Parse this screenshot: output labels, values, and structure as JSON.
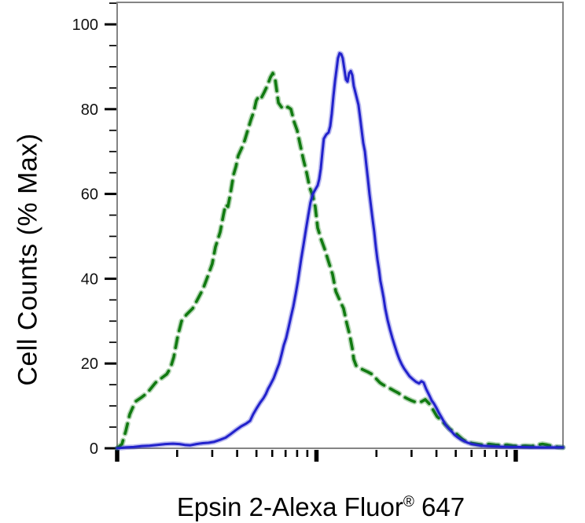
{
  "figure": {
    "background": "#ffffff",
    "frame_color": "#848484",
    "tick_color": "#000000",
    "label_color": "#000000"
  },
  "chart_data": {
    "type": "line",
    "subtype": "flow-cytometry-histogram-overlay",
    "title": "",
    "xlabel": "Epsin 2-Alexa Fluor® 647",
    "xlabel_main": "Epsin 2-Alexa Fluor",
    "xlabel_sup": "®",
    "xlabel_tail": " 647",
    "ylabel": "Cell Counts (% Max)",
    "x_scale": "log",
    "x_decades_shown": [
      0,
      2.237
    ],
    "x_major_tick_decades": [
      0,
      1,
      2
    ],
    "x_minor_ticks_per_decade": [
      2,
      3,
      4,
      5,
      6,
      7,
      8,
      9
    ],
    "x_tick_labels": [],
    "ylim": [
      0,
      105
    ],
    "y_major_ticks": [
      0,
      20,
      40,
      60,
      80,
      100
    ],
    "y_minor_tick_step": 5,
    "grid": "off",
    "legend": "none",
    "series": [
      {
        "name": "dashed_green_control",
        "style": "dashed",
        "color": "#117a11",
        "stroke_width": 3.6,
        "points_logx_pct": [
          [
            0.0,
            0
          ],
          [
            0.024,
            1
          ],
          [
            0.043,
            4
          ],
          [
            0.063,
            8
          ],
          [
            0.091,
            11
          ],
          [
            0.122,
            12
          ],
          [
            0.15,
            13
          ],
          [
            0.193,
            15.5
          ],
          [
            0.221,
            16.5
          ],
          [
            0.249,
            17.5
          ],
          [
            0.268,
            19
          ],
          [
            0.284,
            21.5
          ],
          [
            0.304,
            26.5
          ],
          [
            0.323,
            30
          ],
          [
            0.347,
            31.5
          ],
          [
            0.379,
            33
          ],
          [
            0.402,
            35
          ],
          [
            0.43,
            37.5
          ],
          [
            0.454,
            40.5
          ],
          [
            0.477,
            43.5
          ],
          [
            0.493,
            47.5
          ],
          [
            0.517,
            51
          ],
          [
            0.533,
            55
          ],
          [
            0.544,
            57.5
          ],
          [
            0.556,
            57
          ],
          [
            0.568,
            60
          ],
          [
            0.584,
            64.5
          ],
          [
            0.596,
            66.5
          ],
          [
            0.607,
            69
          ],
          [
            0.627,
            71
          ],
          [
            0.639,
            72.5
          ],
          [
            0.655,
            75
          ],
          [
            0.671,
            77.5
          ],
          [
            0.686,
            79.5
          ],
          [
            0.698,
            82
          ],
          [
            0.71,
            83
          ],
          [
            0.722,
            82.5
          ],
          [
            0.738,
            84
          ],
          [
            0.753,
            85.5
          ],
          [
            0.769,
            87.5
          ],
          [
            0.781,
            88.5
          ],
          [
            0.793,
            87
          ],
          [
            0.809,
            81.5
          ],
          [
            0.824,
            80.5
          ],
          [
            0.84,
            80
          ],
          [
            0.856,
            80.5
          ],
          [
            0.872,
            80
          ],
          [
            0.888,
            77
          ],
          [
            0.903,
            75
          ],
          [
            0.919,
            71.5
          ],
          [
            0.935,
            68
          ],
          [
            0.951,
            65
          ],
          [
            0.966,
            61.5
          ],
          [
            0.982,
            59.5
          ],
          [
            0.994,
            57
          ],
          [
            1.006,
            52
          ],
          [
            1.022,
            49.5
          ],
          [
            1.041,
            47
          ],
          [
            1.061,
            44
          ],
          [
            1.081,
            41
          ],
          [
            1.097,
            37
          ],
          [
            1.116,
            35
          ],
          [
            1.136,
            33
          ],
          [
            1.152,
            29.5
          ],
          [
            1.168,
            26.5
          ],
          [
            1.18,
            23.5
          ],
          [
            1.187,
            21
          ],
          [
            1.199,
            19.5
          ],
          [
            1.215,
            19
          ],
          [
            1.235,
            18.5
          ],
          [
            1.258,
            18
          ],
          [
            1.278,
            17.5
          ],
          [
            1.298,
            16.5
          ],
          [
            1.318,
            15.5
          ],
          [
            1.333,
            15
          ],
          [
            1.353,
            14.5
          ],
          [
            1.373,
            14
          ],
          [
            1.392,
            13.5
          ],
          [
            1.412,
            13
          ],
          [
            1.432,
            12.3
          ],
          [
            1.456,
            11.7
          ],
          [
            1.479,
            11.2
          ],
          [
            1.503,
            10.8
          ],
          [
            1.527,
            11
          ],
          [
            1.546,
            11.5
          ],
          [
            1.566,
            10.5
          ],
          [
            1.586,
            9
          ],
          [
            1.605,
            7.5
          ],
          [
            1.629,
            6.5
          ],
          [
            1.649,
            5.5
          ],
          [
            1.669,
            4.5
          ],
          [
            1.688,
            4
          ],
          [
            1.712,
            3
          ],
          [
            1.736,
            2
          ],
          [
            1.755,
            1.5
          ],
          [
            1.779,
            1.2
          ],
          [
            1.807,
            1
          ],
          [
            1.834,
            0.8
          ],
          [
            1.866,
            1
          ],
          [
            1.897,
            0.8
          ],
          [
            1.929,
            0.7
          ],
          [
            1.957,
            0.8
          ],
          [
            1.984,
            0.6
          ],
          [
            2.016,
            0.5
          ],
          [
            2.047,
            0.6
          ],
          [
            2.079,
            0.5
          ],
          [
            2.11,
            0.8
          ],
          [
            2.134,
            1
          ],
          [
            2.158,
            0.8
          ],
          [
            2.185,
            0.5
          ],
          [
            2.213,
            0.3
          ],
          [
            2.237,
            0.2
          ]
        ]
      },
      {
        "name": "solid_blue_epsin2",
        "style": "solid",
        "color": "#2222cc",
        "stroke_width": 3,
        "points_logx_pct": [
          [
            0.0,
            0
          ],
          [
            0.043,
            0.2
          ],
          [
            0.083,
            0.3
          ],
          [
            0.122,
            0.5
          ],
          [
            0.162,
            0.6
          ],
          [
            0.201,
            0.8
          ],
          [
            0.241,
            1
          ],
          [
            0.28,
            1.1
          ],
          [
            0.312,
            1
          ],
          [
            0.339,
            0.8
          ],
          [
            0.367,
            0.7
          ],
          [
            0.398,
            1
          ],
          [
            0.43,
            1.2
          ],
          [
            0.458,
            1.3
          ],
          [
            0.485,
            1.5
          ],
          [
            0.517,
            2
          ],
          [
            0.544,
            2.5
          ],
          [
            0.568,
            3.3
          ],
          [
            0.596,
            4.3
          ],
          [
            0.623,
            5.2
          ],
          [
            0.647,
            5.8
          ],
          [
            0.667,
            6.5
          ],
          [
            0.682,
            8
          ],
          [
            0.702,
            9.6
          ],
          [
            0.718,
            10.8
          ],
          [
            0.734,
            11.8
          ],
          [
            0.746,
            12.8
          ],
          [
            0.757,
            14
          ],
          [
            0.769,
            15
          ],
          [
            0.785,
            16.5
          ],
          [
            0.801,
            18.5
          ],
          [
            0.813,
            20
          ],
          [
            0.824,
            22
          ],
          [
            0.836,
            24.3
          ],
          [
            0.848,
            26
          ],
          [
            0.86,
            28.5
          ],
          [
            0.872,
            31
          ],
          [
            0.884,
            33.5
          ],
          [
            0.896,
            36.5
          ],
          [
            0.907,
            39.5
          ],
          [
            0.915,
            42
          ],
          [
            0.923,
            44.5
          ],
          [
            0.935,
            48
          ],
          [
            0.947,
            51.5
          ],
          [
            0.959,
            55
          ],
          [
            0.97,
            58
          ],
          [
            0.982,
            60
          ],
          [
            0.994,
            61
          ],
          [
            1.006,
            62
          ],
          [
            1.014,
            63.5
          ],
          [
            1.022,
            66
          ],
          [
            1.03,
            70
          ],
          [
            1.037,
            73
          ],
          [
            1.049,
            74
          ],
          [
            1.061,
            74.5
          ],
          [
            1.069,
            76
          ],
          [
            1.077,
            79
          ],
          [
            1.085,
            83
          ],
          [
            1.093,
            86.5
          ],
          [
            1.101,
            89.5
          ],
          [
            1.108,
            92
          ],
          [
            1.116,
            93.2
          ],
          [
            1.124,
            93
          ],
          [
            1.132,
            92
          ],
          [
            1.14,
            89.5
          ],
          [
            1.148,
            87
          ],
          [
            1.156,
            86.5
          ],
          [
            1.164,
            88.5
          ],
          [
            1.172,
            89
          ],
          [
            1.18,
            88
          ],
          [
            1.187,
            85.5
          ],
          [
            1.195,
            84
          ],
          [
            1.203,
            82.5
          ],
          [
            1.211,
            81
          ],
          [
            1.219,
            78
          ],
          [
            1.227,
            75
          ],
          [
            1.235,
            72
          ],
          [
            1.243,
            70
          ],
          [
            1.25,
            67
          ],
          [
            1.258,
            63.5
          ],
          [
            1.266,
            60
          ],
          [
            1.274,
            57
          ],
          [
            1.282,
            54
          ],
          [
            1.29,
            51
          ],
          [
            1.298,
            47.5
          ],
          [
            1.306,
            44.5
          ],
          [
            1.314,
            42
          ],
          [
            1.321,
            39.5
          ],
          [
            1.329,
            37.5
          ],
          [
            1.337,
            35.5
          ],
          [
            1.345,
            33
          ],
          [
            1.357,
            30.2
          ],
          [
            1.369,
            28
          ],
          [
            1.381,
            26
          ],
          [
            1.392,
            24.3
          ],
          [
            1.404,
            22.5
          ],
          [
            1.416,
            21
          ],
          [
            1.428,
            19.8
          ],
          [
            1.44,
            18.8
          ],
          [
            1.452,
            18
          ],
          [
            1.467,
            17
          ],
          [
            1.483,
            16.3
          ],
          [
            1.499,
            15.7
          ],
          [
            1.515,
            15.3
          ],
          [
            1.527,
            15.8
          ],
          [
            1.538,
            15.5
          ],
          [
            1.55,
            14
          ],
          [
            1.566,
            12.5
          ],
          [
            1.578,
            11.3
          ],
          [
            1.59,
            10.5
          ],
          [
            1.602,
            9.5
          ],
          [
            1.613,
            8.5
          ],
          [
            1.625,
            7.5
          ],
          [
            1.637,
            6.5
          ],
          [
            1.649,
            5.5
          ],
          [
            1.661,
            4.8
          ],
          [
            1.677,
            4
          ],
          [
            1.692,
            3.2
          ],
          [
            1.708,
            2.6
          ],
          [
            1.724,
            2.1
          ],
          [
            1.74,
            1.7
          ],
          [
            1.759,
            1.3
          ],
          [
            1.779,
            1
          ],
          [
            1.803,
            0.8
          ],
          [
            1.826,
            0.6
          ],
          [
            1.858,
            0.5
          ],
          [
            1.897,
            0.4
          ],
          [
            1.937,
            0.35
          ],
          [
            1.976,
            0.3
          ],
          [
            2.016,
            0.3
          ],
          [
            2.075,
            0.25
          ],
          [
            2.134,
            0.2
          ],
          [
            2.193,
            0.2
          ],
          [
            2.237,
            0.2
          ]
        ]
      }
    ]
  }
}
